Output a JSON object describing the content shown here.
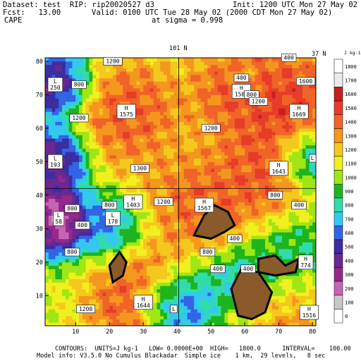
{
  "header": {
    "dataset_line": "Dataset: test  RIP: rip20020527 d3",
    "init_line": "Init: 1200 UTC Mon 27 May 02",
    "fcst_line": "Fcst:   13.00",
    "valid_line": "Valid: 0100 UTC Tue 28 May 02 (2000 CDT Mon 27 May 02)",
    "field_line": "CAPE",
    "sigma_line": "at sigma = 0.998"
  },
  "plot": {
    "top_label_center": "101 N",
    "top_label_right": "37 N",
    "colorbar_unit": "J kg-1"
  },
  "footer": {
    "contours_line": "CONTOURS:  UNITS=J kg-1   LOW= 0.0000E+00  HIGH=   1800.0      INTERVAL=    100.00",
    "model_line": "Model info: V3.5.0 No Cumulus Blackadar  Simple ice    1 km,  29 levels,   8 sec"
  },
  "colors": {
    "cape_0": "#ffffff",
    "cape_100": "#c8c8c8",
    "cape_200": "#c864b4",
    "cape_300": "#96288c",
    "cape_400": "#6a2890",
    "cape_500": "#3c2da0",
    "cape_600": "#3264e6",
    "cape_700": "#32c8f0",
    "cape_800": "#32dcaa",
    "cape_900": "#1eb41e",
    "cape_1000": "#a0e614",
    "cape_1100": "#f0f01e",
    "cape_1200": "#f5c81e",
    "cape_1300": "#f5961e",
    "cape_1400": "#f06428",
    "cape_1500": "#e63c28",
    "cape_1600": "#c81e1e",
    "cape_1700": "#ebebeb",
    "cape_1800": "#ffffff",
    "terrain": "#8b5a2b"
  },
  "chart_data": {
    "type": "heatmap",
    "title": "CAPE",
    "xlabel": "",
    "ylabel": "",
    "xlim": [
      1,
      81
    ],
    "ylim": [
      1,
      81
    ],
    "xticks": [
      10,
      20,
      30,
      40,
      50,
      60,
      70,
      80
    ],
    "yticks": [
      10,
      20,
      30,
      40,
      50,
      60,
      70,
      80
    ],
    "colorbar_levels": [
      0,
      100,
      200,
      300,
      400,
      500,
      600,
      700,
      800,
      900,
      1000,
      1100,
      1200,
      1300,
      1400,
      1500,
      1600,
      1700,
      1800
    ],
    "highs": [
      {
        "x": 25,
        "y": 65,
        "label": "H",
        "value": "1575"
      },
      {
        "x": 59,
        "y": 71,
        "label": "H",
        "value": "1583"
      },
      {
        "x": 76,
        "y": 65,
        "label": "H",
        "value": "1669"
      },
      {
        "x": 27,
        "y": 38,
        "label": "H",
        "value": "1403"
      },
      {
        "x": 48,
        "y": 37,
        "label": "H",
        "value": "1567"
      },
      {
        "x": 70,
        "y": 48,
        "label": "H",
        "value": "1643"
      },
      {
        "x": 30,
        "y": 8,
        "label": "H",
        "value": "1644"
      },
      {
        "x": 78,
        "y": 20,
        "label": "H",
        "value": "774"
      },
      {
        "x": 79,
        "y": 5,
        "label": "H",
        "value": "1516"
      }
    ],
    "lows": [
      {
        "x": 4,
        "y": 73,
        "label": "L",
        "value": "250"
      },
      {
        "x": 4,
        "y": 50,
        "label": "L",
        "value": "193"
      },
      {
        "x": 5,
        "y": 33,
        "label": "L",
        "value": "58"
      },
      {
        "x": 21,
        "y": 33,
        "label": "L",
        "value": "178"
      },
      {
        "x": 80,
        "y": 51,
        "label": "L",
        "value": ""
      },
      {
        "x": 39,
        "y": 6,
        "label": "L",
        "value": ""
      }
    ],
    "contour_labels": [
      {
        "x": 21,
        "y": 80,
        "text": "1200"
      },
      {
        "x": 11,
        "y": 73,
        "text": "800"
      },
      {
        "x": 11,
        "y": 63,
        "text": "1200"
      },
      {
        "x": 29,
        "y": 48,
        "text": "1300"
      },
      {
        "x": 50,
        "y": 60,
        "text": "1200"
      },
      {
        "x": 59,
        "y": 75,
        "text": "400"
      },
      {
        "x": 62,
        "y": 70,
        "text": "800"
      },
      {
        "x": 64,
        "y": 68,
        "text": "1200"
      },
      {
        "x": 78,
        "y": 74,
        "text": "1600"
      },
      {
        "x": 73,
        "y": 81,
        "text": "400"
      },
      {
        "x": 9,
        "y": 36,
        "text": "800"
      },
      {
        "x": 20,
        "y": 37,
        "text": "800"
      },
      {
        "x": 36,
        "y": 38,
        "text": "1200"
      },
      {
        "x": 12,
        "y": 31,
        "text": "400"
      },
      {
        "x": 9,
        "y": 23,
        "text": "800"
      },
      {
        "x": 49,
        "y": 23,
        "text": "800"
      },
      {
        "x": 57,
        "y": 27,
        "text": "400"
      },
      {
        "x": 52,
        "y": 18,
        "text": "400"
      },
      {
        "x": 61,
        "y": 18,
        "text": "400"
      },
      {
        "x": 69,
        "y": 40,
        "text": "800"
      },
      {
        "x": 13,
        "y": 6,
        "text": "1200"
      },
      {
        "x": 76,
        "y": 37,
        "text": "400"
      }
    ]
  }
}
